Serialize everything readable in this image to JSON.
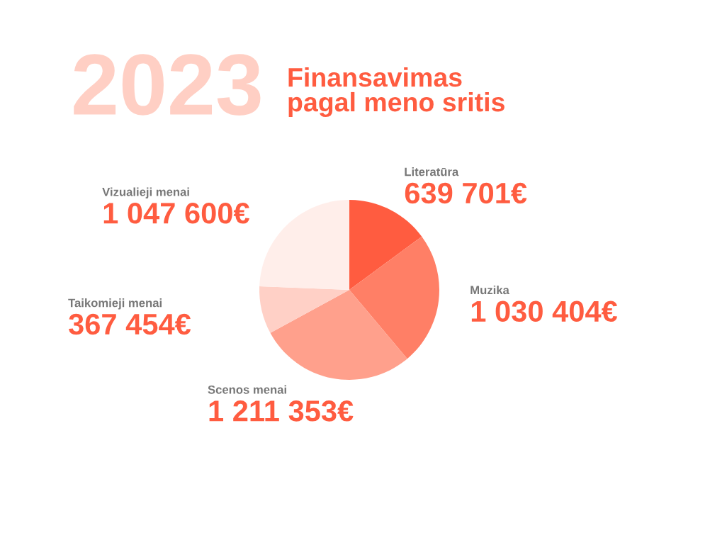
{
  "chart_data": {
    "type": "pie",
    "title": "2023",
    "subtitle": "Finansavimas\npagal meno sritis",
    "categories": [
      "Literatūra",
      "Muzika",
      "Scenos menai",
      "Taikomieji menai",
      "Vizualieji menai"
    ],
    "values": [
      639701,
      1030404,
      1211353,
      367454,
      1047600
    ],
    "value_labels": [
      "639 701€",
      "1 030 404€",
      "1 211 353€",
      "367 454€",
      "1 047 600€"
    ],
    "colors": [
      "#ff5c40",
      "#ff7f66",
      "#ffa08c",
      "#ffd0c6",
      "#ffeeea"
    ],
    "legend": false
  }
}
